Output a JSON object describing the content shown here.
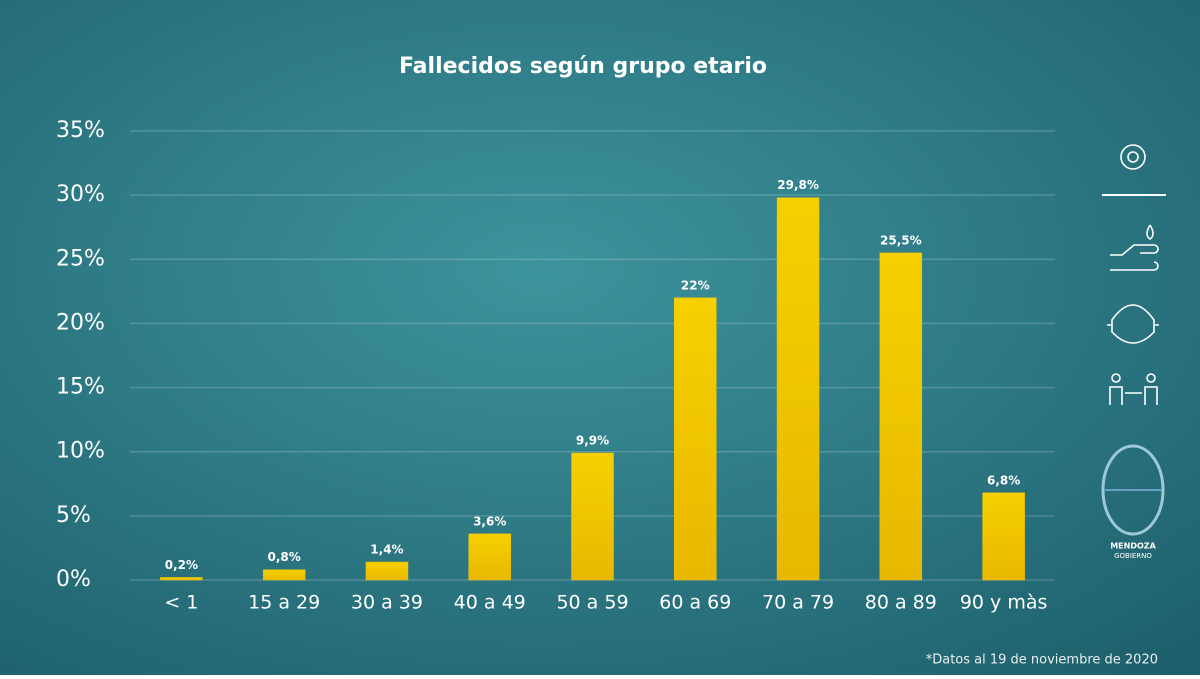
{
  "chart_data": {
    "type": "bar",
    "title": "Fallecidos según grupo etario",
    "categories": [
      "< 1",
      "15 a 29",
      "30 a 39",
      "40 a 49",
      "50 a 59",
      "60 a 69",
      "70 a 79",
      "80 a 89",
      "90 y màs"
    ],
    "values": [
      0.2,
      0.8,
      1.4,
      3.6,
      9.9,
      22,
      29.8,
      25.5,
      6.8
    ],
    "value_labels": [
      "0,2%",
      "0,8%",
      "1,4%",
      "3,6%",
      "9,9%",
      "22%",
      "29,8%",
      "25,5%",
      "6,8%"
    ],
    "color": "#f2c200",
    "ylim": [
      0,
      35
    ],
    "yticks": [
      {
        "value": 0,
        "label": "0%"
      },
      {
        "value": 5,
        "label": "5%"
      },
      {
        "value": 10,
        "label": "10%"
      },
      {
        "value": 15,
        "label": "15%"
      },
      {
        "value": 20,
        "label": "20%"
      },
      {
        "value": 25,
        "label": "25%"
      },
      {
        "value": 30,
        "label": "30%"
      },
      {
        "value": 35,
        "label": "35%"
      }
    ],
    "grid": true,
    "note": "*Datos al 19 de noviembre de 2020"
  },
  "branding": {
    "line1": "MENDOZA",
    "line2": "GOBIERNO"
  }
}
